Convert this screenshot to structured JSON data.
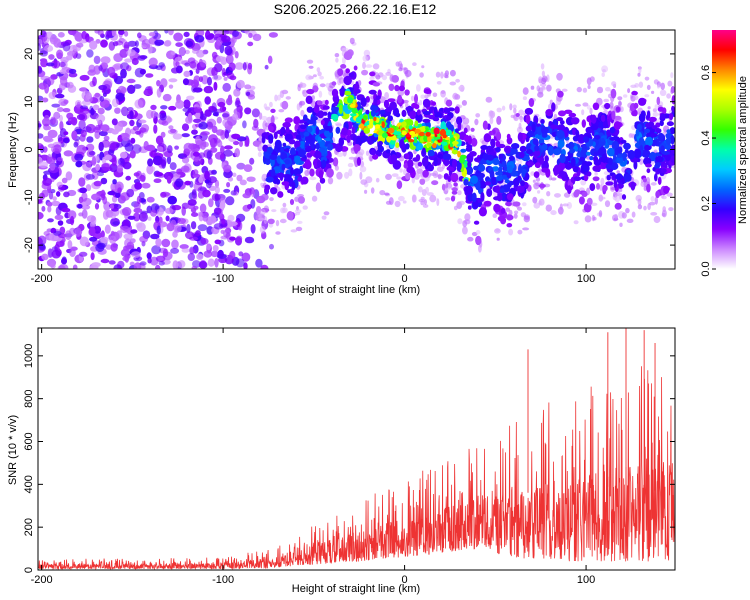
{
  "title": "S206.2025.266.22.16.E12",
  "chart_data": [
    {
      "type": "heatmap",
      "title": "S206.2025.266.22.16.E12",
      "xlabel": "Height of straight line (km)",
      "ylabel": "Frequency (Hz)",
      "xlim": [
        -202,
        149
      ],
      "ylim": [
        -25,
        25
      ],
      "xticks": [
        -200,
        -100,
        0,
        100
      ],
      "yticks": [
        -20,
        -10,
        0,
        10,
        20
      ],
      "colorbar": {
        "label": "Normalized spectral amplitude",
        "range": [
          0.0,
          0.73
        ],
        "ticks": [
          0.0,
          0.2,
          0.4,
          0.6
        ],
        "colors": [
          "#ffffff",
          "#cc88ff",
          "#8800ff",
          "#3300ff",
          "#0066ff",
          "#00ccff",
          "#00ffaa",
          "#33ff00",
          "#aaff00",
          "#ffff00",
          "#ff8800",
          "#ff0000",
          "#ff0088"
        ]
      },
      "ridge": {
        "x": [
          -75,
          -65,
          -60,
          -55,
          -50,
          -45,
          -40,
          -35,
          -30,
          -25,
          -20,
          -15,
          -10,
          -5,
          0,
          5,
          10,
          15,
          20,
          25,
          30,
          35,
          40,
          45,
          50,
          55,
          60,
          65,
          70,
          80,
          90,
          100,
          110,
          120,
          130,
          140,
          149
        ],
        "y": [
          -3,
          -2,
          -4,
          2,
          5,
          0,
          4,
          8,
          10,
          6,
          5,
          5,
          4,
          3,
          4,
          3,
          3,
          2,
          3,
          2,
          0,
          -5,
          -8,
          -3,
          -4,
          -6,
          -3,
          -4,
          3,
          2,
          0,
          -1,
          2,
          -4,
          3,
          0,
          3
        ]
      }
    },
    {
      "type": "line",
      "xlabel": "Height of straight line (km)",
      "ylabel": "SNR (10 * v/v)",
      "xlim": [
        -202,
        149
      ],
      "ylim": [
        0,
        1130
      ],
      "xticks": [
        -200,
        -100,
        0,
        100
      ],
      "yticks": [
        0,
        200,
        400,
        600,
        800,
        1000
      ],
      "color": "#ee3333",
      "envelope": {
        "x": [
          -202,
          -150,
          -100,
          -80,
          -70,
          -60,
          -50,
          -45,
          -40,
          -30,
          -20,
          -10,
          0,
          10,
          20,
          30,
          40,
          50,
          60,
          70,
          80,
          90,
          100,
          110,
          120,
          130,
          140,
          149
        ],
        "low": [
          5,
          5,
          5,
          8,
          12,
          20,
          25,
          30,
          30,
          35,
          45,
          55,
          60,
          70,
          80,
          90,
          100,
          80,
          60,
          50,
          50,
          40,
          40,
          40,
          40,
          40,
          40,
          40
        ],
        "high": [
          50,
          55,
          60,
          90,
          110,
          150,
          220,
          260,
          260,
          300,
          350,
          380,
          430,
          480,
          520,
          550,
          600,
          640,
          700,
          780,
          800,
          820,
          860,
          900,
          950,
          980,
          950,
          980
        ]
      },
      "peaks": [
        {
          "x": 68,
          "y": 1030
        },
        {
          "x": 112,
          "y": 1110
        },
        {
          "x": 122,
          "y": 1130
        },
        {
          "x": 132,
          "y": 1120
        },
        {
          "x": 138,
          "y": 1060
        }
      ]
    }
  ]
}
